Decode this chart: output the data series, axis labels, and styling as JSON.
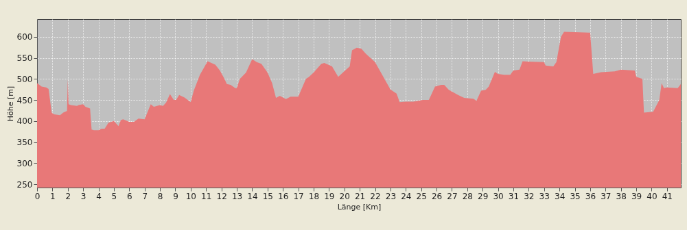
{
  "chart_data": {
    "type": "area",
    "xlabel": "Länge [Km]",
    "ylabel": "Höhe [m]",
    "x": [
      0,
      0.3,
      0.6,
      0.75,
      0.95,
      1.1,
      1.5,
      1.7,
      1.95,
      2.0,
      2.05,
      2.2,
      2.6,
      2.7,
      3.0,
      3.15,
      3.45,
      3.55,
      3.7,
      4.0,
      4.2,
      4.4,
      4.65,
      5.0,
      5.3,
      5.45,
      5.6,
      6.0,
      6.3,
      6.6,
      7.0,
      7.4,
      7.6,
      8.0,
      8.2,
      8.4,
      8.65,
      8.9,
      9.05,
      9.25,
      9.6,
      10.0,
      10.2,
      10.6,
      11.1,
      11.6,
      11.9,
      12.2,
      12.35,
      12.6,
      12.9,
      13.0,
      13.2,
      13.6,
      14.0,
      14.3,
      14.6,
      15.0,
      15.3,
      15.55,
      15.8,
      16.2,
      16.5,
      17.0,
      17.5,
      17.7,
      18.0,
      18.5,
      18.7,
      19.2,
      19.6,
      20.2,
      20.35,
      20.5,
      20.8,
      21.1,
      21.4,
      22.0,
      23.0,
      23.4,
      23.6,
      24.0,
      24.5,
      25.1,
      25.5,
      25.9,
      26.3,
      26.5,
      26.8,
      27.0,
      27.4,
      27.8,
      28.4,
      28.6,
      28.9,
      29.2,
      29.4,
      29.8,
      30.0,
      30.4,
      30.8,
      31.0,
      31.4,
      31.6,
      32.0,
      33.0,
      33.1,
      33.6,
      33.8,
      34.1,
      34.3,
      36.0,
      36.2,
      36.7,
      37.6,
      38.0,
      38.9,
      39.0,
      39.4,
      39.5,
      40.1,
      40.5,
      40.65,
      40.8,
      41.0,
      41.7,
      41.9
    ],
    "series": [
      {
        "color": "#e87878",
        "values": [
          490,
          482,
          480,
          476,
          420,
          416,
          414,
          420,
          424,
          500,
          440,
          438,
          436,
          438,
          440,
          434,
          430,
          380,
          378,
          378,
          382,
          382,
          396,
          400,
          388,
          402,
          404,
          398,
          398,
          406,
          404,
          440,
          434,
          438,
          436,
          444,
          464,
          450,
          450,
          462,
          456,
          445,
          472,
          510,
          542,
          534,
          520,
          500,
          488,
          486,
          478,
          478,
          500,
          515,
          547,
          540,
          536,
          515,
          490,
          455,
          460,
          452,
          458,
          458,
          500,
          505,
          515,
          536,
          538,
          530,
          505,
          525,
          530,
          568,
          574,
          572,
          560,
          540,
          475,
          465,
          445,
          446,
          446,
          450,
          450,
          482,
          486,
          486,
          474,
          470,
          462,
          455,
          453,
          448,
          472,
          474,
          482,
          517,
          512,
          510,
          510,
          520,
          522,
          542,
          541,
          540,
          532,
          530,
          540,
          600,
          612,
          610,
          512,
          516,
          518,
          522,
          520,
          505,
          500,
          420,
          422,
          450,
          490,
          478,
          480,
          478,
          488
        ]
      }
    ],
    "xlim": [
      0,
      41.9
    ],
    "ylim": [
      242,
      642
    ],
    "xticks": [
      0,
      1,
      2,
      3,
      4,
      5,
      6,
      7,
      8,
      9,
      10,
      11,
      12,
      13,
      14,
      15,
      16,
      17,
      18,
      19,
      20,
      21,
      22,
      23,
      24,
      25,
      26,
      27,
      28,
      29,
      30,
      31,
      32,
      33,
      34,
      35,
      36,
      37,
      38,
      39,
      40,
      41
    ],
    "yticks": [
      250,
      300,
      350,
      400,
      450,
      500,
      550,
      600
    ],
    "grid": true
  }
}
